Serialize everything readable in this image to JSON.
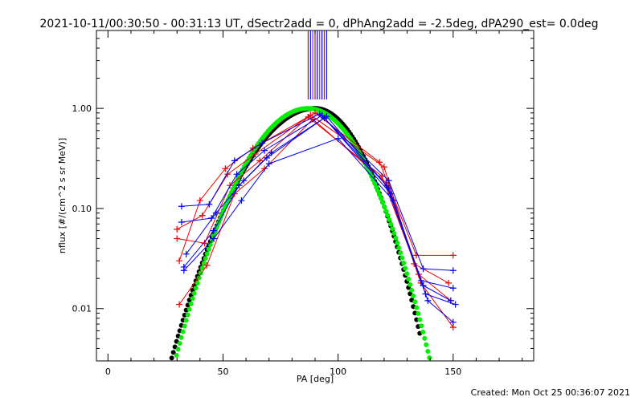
{
  "chart_data": {
    "type": "scatter",
    "title": "2021-10-11/00:30:50 - 00:31:13 UT, dSectr2add = 0, dPhAng2add = -2.5deg, dPA290_est=  0.0deg",
    "xlabel": "PA [deg]",
    "ylabel": "nflux [#/(cm^2 s sr MeV)]",
    "footer": "Created: Mon Oct 25 00:36:07 2021",
    "xlim": [
      -5,
      185
    ],
    "ylim": [
      0.003,
      6
    ],
    "yscale": "log",
    "x_ticks": [
      0,
      50,
      100,
      150
    ],
    "x_tick_labels": [
      "0",
      "50",
      "100",
      "150"
    ],
    "y_ticks": [
      0.01,
      0.1,
      1.0
    ],
    "y_tick_labels": [
      "0.01",
      "0.10",
      "1.00"
    ],
    "grid": false,
    "legend": "none",
    "colors": {
      "red": "#ee0000",
      "blue": "#0000ee",
      "black": "#000000",
      "green": "#00ee00",
      "purple": "#8a2be2"
    },
    "vertical_markers": [
      {
        "x": 87,
        "color": "#ee0000"
      },
      {
        "x": 88,
        "color": "#0000ee"
      },
      {
        "x": 89,
        "color": "#8a2be2"
      },
      {
        "x": 90,
        "color": "#ee0000"
      },
      {
        "x": 91,
        "color": "#0000ee"
      },
      {
        "x": 92,
        "color": "#8a2be2"
      },
      {
        "x": 93,
        "color": "#0000ee"
      },
      {
        "x": 94,
        "color": "#ee0000"
      },
      {
        "x": 95,
        "color": "#0000ee"
      }
    ],
    "series": [
      {
        "color": "#ee0000",
        "x": [
          30,
          41,
          52,
          64,
          88,
          120,
          133,
          148
        ],
        "y": [
          0.062,
          0.085,
          0.22,
          0.35,
          0.86,
          0.26,
          0.028,
          0.018
        ]
      },
      {
        "color": "#ee0000",
        "x": [
          30,
          42,
          53,
          66,
          87,
          119,
          135,
          149
        ],
        "y": [
          0.05,
          0.045,
          0.17,
          0.3,
          0.82,
          0.21,
          0.022,
          0.012
        ]
      },
      {
        "color": "#ee0000",
        "x": [
          31,
          43,
          55,
          68,
          89,
          121,
          136,
          150
        ],
        "y": [
          0.011,
          0.027,
          0.14,
          0.25,
          0.78,
          0.18,
          0.018,
          0.0065
        ]
      },
      {
        "color": "#ee0000",
        "x": [
          31,
          40,
          51,
          63,
          90,
          118,
          134,
          150
        ],
        "y": [
          0.03,
          0.12,
          0.25,
          0.4,
          0.9,
          0.29,
          0.034,
          0.034
        ]
      },
      {
        "color": "#0000ee",
        "x": [
          32,
          44,
          55,
          67,
          92,
          122,
          137,
          150
        ],
        "y": [
          0.105,
          0.11,
          0.3,
          0.45,
          0.88,
          0.19,
          0.025,
          0.024
        ]
      },
      {
        "color": "#0000ee",
        "x": [
          32,
          45,
          56,
          68,
          93,
          121,
          136,
          150
        ],
        "y": [
          0.073,
          0.08,
          0.22,
          0.38,
          0.85,
          0.17,
          0.019,
          0.016
        ]
      },
      {
        "color": "#0000ee",
        "x": [
          33,
          46,
          57,
          69,
          94,
          123,
          138,
          151
        ],
        "y": [
          0.026,
          0.06,
          0.17,
          0.32,
          0.8,
          0.14,
          0.014,
          0.011
        ]
      },
      {
        "color": "#0000ee",
        "x": [
          33,
          46,
          58,
          70,
          100,
          124,
          139,
          150
        ],
        "y": [
          0.024,
          0.05,
          0.12,
          0.28,
          0.5,
          0.12,
          0.012,
          0.0073
        ]
      },
      {
        "color": "#0000ee",
        "x": [
          34,
          47,
          59,
          71,
          95,
          122,
          137,
          149
        ],
        "y": [
          0.035,
          0.09,
          0.19,
          0.36,
          0.83,
          0.16,
          0.017,
          0.012
        ]
      }
    ],
    "model_curves": [
      {
        "color": "#000000",
        "x_start": 20,
        "x_end": 136,
        "peak_x": 90,
        "width_left": 26,
        "width_right": 20,
        "peak_y": 1.0
      },
      {
        "color": "#00ee00",
        "x_start": 20,
        "x_end": 140,
        "peak_x": 87,
        "width_left": 24,
        "width_right": 22,
        "peak_y": 1.0
      }
    ]
  }
}
